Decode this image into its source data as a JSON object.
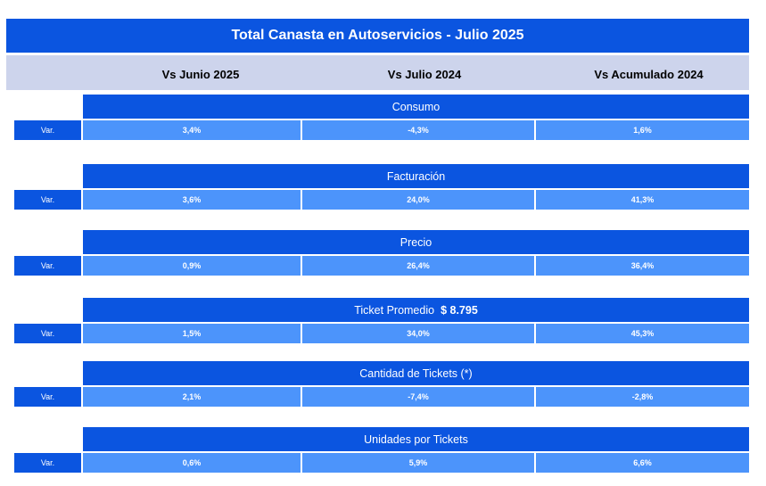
{
  "title": "Total Canasta en Autoservicios - Julio 2025",
  "columns": [
    "Vs Junio 2025",
    "Vs Julio 2024",
    "Vs Acumulado 2024"
  ],
  "var_label": "Var.",
  "sections": [
    {
      "title": "Consumo",
      "extra": "",
      "values": [
        "3,4%",
        "-4,3%",
        "1,6%"
      ]
    },
    {
      "title": "Facturación",
      "extra": "",
      "values": [
        "3,6%",
        "24,0%",
        "41,3%"
      ]
    },
    {
      "title": "Precio",
      "extra": "",
      "values": [
        "0,9%",
        "26,4%",
        "36,4%"
      ]
    },
    {
      "title": "Ticket Promedio",
      "extra": "$ 8.795",
      "values": [
        "1,5%",
        "34,0%",
        "45,3%"
      ]
    },
    {
      "title": "Cantidad de Tickets (*)",
      "extra": "",
      "values": [
        "2,1%",
        "-7,4%",
        "-2,8%"
      ]
    },
    {
      "title": "Unidades por Tickets",
      "extra": "",
      "values": [
        "0,6%",
        "5,9%",
        "6,6%"
      ]
    }
  ],
  "colors": {
    "primary": "#0b55e0",
    "cell": "#4c94fb",
    "header": "#cdd4ec"
  }
}
